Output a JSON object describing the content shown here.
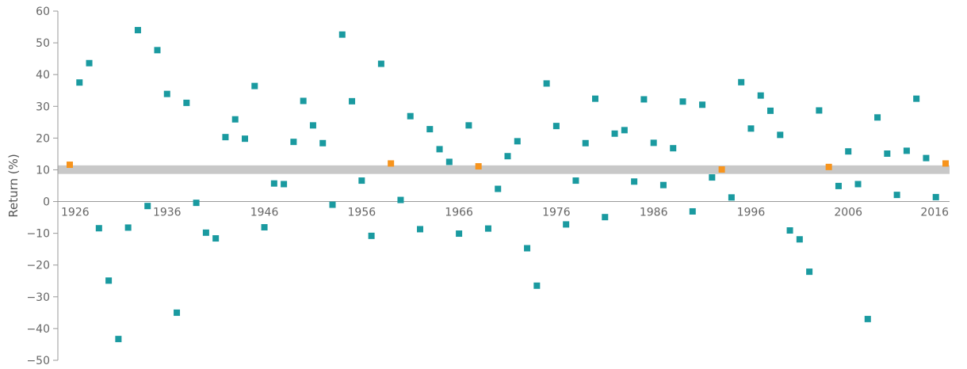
{
  "chart_data": {
    "type": "scatter",
    "ylabel": "Return (%)",
    "ylim": [
      -50,
      60
    ],
    "y_ticks": [
      60,
      50,
      40,
      30,
      20,
      10,
      0,
      -10,
      -20,
      -30,
      -40,
      -50
    ],
    "x_ticks": [
      1926,
      1936,
      1946,
      1956,
      1966,
      1976,
      1986,
      1996,
      2006,
      2016
    ],
    "band": {
      "from": 8.7,
      "to": 11.4,
      "color": "#c8c8c8"
    },
    "colors": {
      "regular": "#1a9aa0",
      "highlight": "#f7941d"
    },
    "x": [
      1926,
      1927,
      1928,
      1929,
      1930,
      1931,
      1932,
      1933,
      1934,
      1935,
      1936,
      1937,
      1938,
      1939,
      1940,
      1941,
      1942,
      1943,
      1944,
      1945,
      1946,
      1947,
      1948,
      1949,
      1950,
      1951,
      1952,
      1953,
      1954,
      1955,
      1956,
      1957,
      1958,
      1959,
      1960,
      1961,
      1962,
      1963,
      1964,
      1965,
      1966,
      1967,
      1968,
      1969,
      1970,
      1971,
      1972,
      1973,
      1974,
      1975,
      1976,
      1977,
      1978,
      1979,
      1980,
      1981,
      1982,
      1983,
      1984,
      1985,
      1986,
      1987,
      1988,
      1989,
      1990,
      1991,
      1992,
      1993,
      1994,
      1995,
      1996,
      1997,
      1998,
      1999,
      2000,
      2001,
      2002,
      2003,
      2004,
      2005,
      2006,
      2007,
      2008,
      2009,
      2010,
      2011,
      2012,
      2013,
      2014,
      2015,
      2016
    ],
    "y": [
      11.6,
      37.5,
      43.6,
      -8.4,
      -24.9,
      -43.3,
      -8.2,
      54.0,
      -1.4,
      47.7,
      33.9,
      -35.0,
      31.1,
      -0.4,
      -9.8,
      -11.6,
      20.3,
      25.9,
      19.8,
      36.4,
      -8.1,
      5.7,
      5.5,
      18.8,
      31.7,
      24.0,
      18.4,
      -1.0,
      52.6,
      31.6,
      6.6,
      -10.8,
      43.4,
      12.0,
      0.5,
      26.9,
      -8.7,
      22.8,
      16.5,
      12.5,
      -10.1,
      24.0,
      11.1,
      -8.5,
      4.0,
      14.3,
      19.0,
      -14.7,
      -26.5,
      37.2,
      23.8,
      -7.2,
      6.6,
      18.4,
      32.4,
      -4.9,
      21.4,
      22.5,
      6.3,
      32.2,
      18.5,
      5.2,
      16.8,
      31.5,
      -3.1,
      30.5,
      7.6,
      10.1,
      1.3,
      37.6,
      23.0,
      33.4,
      28.6,
      21.0,
      -9.1,
      -11.9,
      -22.1,
      28.7,
      10.9,
      4.9,
      15.8,
      5.5,
      -37.0,
      26.5,
      15.1,
      2.1,
      16.0,
      32.4,
      13.7,
      1.4,
      12.0
    ],
    "highlighted_years": [
      1926,
      1959,
      1968,
      1993,
      2004,
      2016
    ]
  }
}
